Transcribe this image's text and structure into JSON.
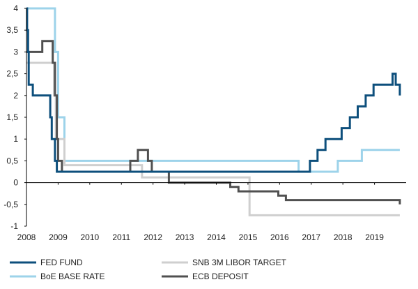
{
  "chart_data": {
    "type": "line",
    "title": "",
    "xlabel": "",
    "ylabel": "",
    "xlim": [
      2008,
      2020
    ],
    "ylim": [
      -1,
      4
    ],
    "x_ticks": [
      "2008",
      "2009",
      "2010",
      "2011",
      "2012",
      "2013",
      "2014",
      "2015",
      "2016",
      "2017",
      "2018",
      "2019"
    ],
    "y_ticks": [
      "4",
      "3,5",
      "3",
      "2,5",
      "2",
      "1,5",
      "1",
      "0,5",
      "0",
      "-0,5",
      "-1"
    ],
    "grid": false,
    "legend_position": "bottom",
    "series": [
      {
        "name": "FED FUND",
        "color": "#0d4f7c",
        "x": [
          2008.0,
          2008.02,
          2008.05,
          2008.07,
          2008.15,
          2008.2,
          2008.25,
          2008.33,
          2008.7,
          2008.75,
          2008.8,
          2008.84,
          2008.9,
          2008.96,
          2015.96,
          2016.96,
          2017.2,
          2017.45,
          2017.96,
          2018.22,
          2018.47,
          2018.72,
          2018.97,
          2019.57,
          2019.67,
          2019.8
        ],
        "y": [
          4.0,
          3.5,
          3.0,
          2.25,
          2.25,
          2.0,
          2.0,
          2.0,
          2.0,
          1.5,
          1.0,
          1.0,
          0.5,
          0.25,
          0.25,
          0.5,
          0.75,
          1.0,
          1.25,
          1.5,
          1.75,
          2.0,
          2.25,
          2.5,
          2.25,
          2.0
        ]
      },
      {
        "name": "SNB 3M LIBOR TARGET",
        "color": "#cfcfcf",
        "x": [
          2008.0,
          2008.82,
          2008.87,
          2008.93,
          2009.2,
          2011.6,
          2011.65,
          2014.95,
          2015.05,
          2019.8
        ],
        "y": [
          2.75,
          2.75,
          2.0,
          1.0,
          0.4,
          0.4,
          0.12,
          0.12,
          -0.75,
          -0.75
        ],
        "x_display": [
          2008.0,
          2008.82,
          2008.87,
          2008.93,
          2009.2,
          2011.6,
          2011.65,
          2014.95,
          2015.05,
          2019.8
        ],
        "y_display": [
          2.75,
          2.75,
          2.0,
          1.0,
          0.4,
          0.4,
          0.12,
          0.12,
          -0.75,
          -0.75
        ]
      },
      {
        "name": "BoE BASE RATE",
        "color": "#9dd3ea",
        "x": [
          2008.0,
          2008.83,
          2008.9,
          2009.0,
          2009.2,
          2016.6,
          2017.84,
          2018.6,
          2019.8
        ],
        "y": [
          4.0,
          4.0,
          3.0,
          1.5,
          0.5,
          0.25,
          0.5,
          0.75,
          0.75
        ]
      },
      {
        "name": "ECB DEPOSIT",
        "color": "#505050",
        "x": [
          2008.0,
          2008.5,
          2008.77,
          2008.83,
          2008.9,
          2008.96,
          2009.0,
          2009.12,
          2009.2,
          2011.28,
          2011.52,
          2011.84,
          2011.96,
          2012.5,
          2014.44,
          2014.7,
          2015.0,
          2015.96,
          2016.2,
          2019.72,
          2019.8
        ],
        "y": [
          3.0,
          3.25,
          3.25,
          2.75,
          2.0,
          1.0,
          0.5,
          0.25,
          0.25,
          0.5,
          0.75,
          0.5,
          0.25,
          0.0,
          -0.1,
          -0.2,
          -0.2,
          -0.3,
          -0.4,
          -0.4,
          -0.5
        ]
      }
    ]
  }
}
